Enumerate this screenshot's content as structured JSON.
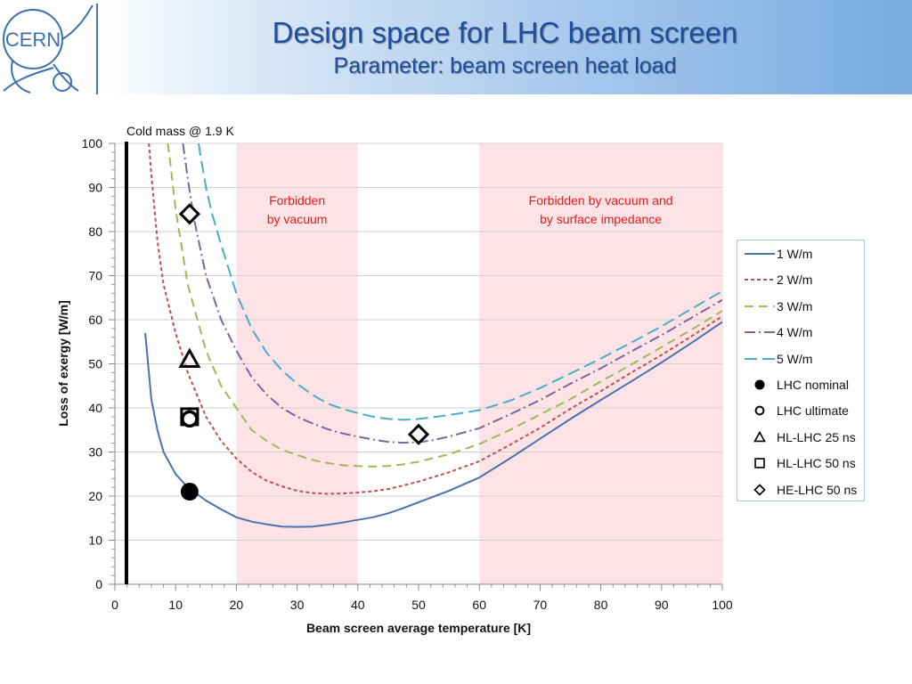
{
  "header": {
    "logo_text": "CERN",
    "title": "Design space for LHC beam screen",
    "subtitle": "Parameter: beam screen heat load"
  },
  "chart_data": {
    "type": "line",
    "xlabel": "Beam screen average temperature [K]",
    "ylabel": "Loss of exergy [W/m]",
    "xlim": [
      0,
      100
    ],
    "ylim": [
      0,
      100
    ],
    "xticks": [
      0,
      10,
      20,
      30,
      40,
      50,
      60,
      70,
      80,
      90,
      100
    ],
    "yticks": [
      0,
      10,
      20,
      30,
      40,
      50,
      60,
      70,
      80,
      90,
      100
    ],
    "grid": "horizontal",
    "legend_position": "right",
    "cold_mass": {
      "x": 1.9,
      "label": "Cold mass @ 1.9 K"
    },
    "forbidden_regions": [
      {
        "x0": 20,
        "x1": 40,
        "label": [
          "Forbidden",
          "by vacuum"
        ]
      },
      {
        "x0": 60,
        "x1": 100,
        "label": [
          "Forbidden by vacuum and",
          "by surface impedance"
        ]
      }
    ],
    "series": [
      {
        "name": "1 W/m",
        "color": "#4a72b0",
        "dash": "",
        "points": [
          [
            5,
            57
          ],
          [
            6,
            42
          ],
          [
            7,
            35
          ],
          [
            8,
            30
          ],
          [
            10,
            25
          ],
          [
            12,
            22
          ],
          [
            15,
            19
          ],
          [
            17.5,
            17
          ],
          [
            20,
            15.2
          ],
          [
            22.5,
            14.2
          ],
          [
            25,
            13.6
          ],
          [
            27.5,
            13.1
          ],
          [
            30,
            13
          ],
          [
            32.5,
            13.1
          ],
          [
            35,
            13.5
          ],
          [
            37.5,
            14
          ],
          [
            40,
            14.6
          ],
          [
            42.5,
            15.2
          ],
          [
            45,
            16.1
          ],
          [
            47.5,
            17.3
          ],
          [
            50,
            18.6
          ],
          [
            55,
            21.2
          ],
          [
            60,
            24.2
          ],
          [
            65,
            28.5
          ],
          [
            70,
            33
          ],
          [
            75,
            37.5
          ],
          [
            80,
            41.8
          ],
          [
            85,
            46
          ],
          [
            90,
            50.3
          ],
          [
            95,
            54.8
          ],
          [
            100,
            59.5
          ]
        ]
      },
      {
        "name": "2 W/m",
        "color": "#c0504d",
        "dash": "4,3",
        "points": [
          [
            5.6,
            100
          ],
          [
            6,
            93
          ],
          [
            7,
            78
          ],
          [
            8,
            68
          ],
          [
            10,
            57
          ],
          [
            12,
            48
          ],
          [
            15,
            38
          ],
          [
            17.5,
            32.5
          ],
          [
            20,
            28.5
          ],
          [
            22.5,
            25.5
          ],
          [
            25,
            23.5
          ],
          [
            27.5,
            22.2
          ],
          [
            30,
            21.2
          ],
          [
            32.5,
            20.7
          ],
          [
            35,
            20.5
          ],
          [
            37.5,
            20.6
          ],
          [
            40,
            20.8
          ],
          [
            42.5,
            21.1
          ],
          [
            45,
            21.6
          ],
          [
            47.5,
            22.4
          ],
          [
            50,
            23.3
          ],
          [
            55,
            25.4
          ],
          [
            60,
            27.9
          ],
          [
            65,
            31.6
          ],
          [
            70,
            35.5
          ],
          [
            75,
            39.8
          ],
          [
            80,
            43.8
          ],
          [
            85,
            48
          ],
          [
            90,
            52
          ],
          [
            95,
            56.3
          ],
          [
            100,
            60.8
          ]
        ]
      },
      {
        "name": "3 W/m",
        "color": "#9bbb59",
        "dash": "10,6",
        "points": [
          [
            8.7,
            100
          ],
          [
            9,
            97
          ],
          [
            10,
            85
          ],
          [
            12,
            68
          ],
          [
            15,
            53
          ],
          [
            17.5,
            45
          ],
          [
            20,
            40
          ],
          [
            22.5,
            35
          ],
          [
            25,
            32.5
          ],
          [
            27.5,
            30.5
          ],
          [
            30,
            29.3
          ],
          [
            32.5,
            28.2
          ],
          [
            35,
            27.5
          ],
          [
            37.5,
            27
          ],
          [
            40,
            26.8
          ],
          [
            42.5,
            26.7
          ],
          [
            45,
            26.8
          ],
          [
            47.5,
            27.2
          ],
          [
            50,
            27.8
          ],
          [
            55,
            29.5
          ],
          [
            60,
            31.8
          ],
          [
            65,
            35
          ],
          [
            70,
            38.5
          ],
          [
            75,
            42
          ],
          [
            80,
            46
          ],
          [
            85,
            49.8
          ],
          [
            90,
            53.8
          ],
          [
            95,
            57.8
          ],
          [
            100,
            62
          ]
        ]
      },
      {
        "name": "4 W/m",
        "color": "#8064a2",
        "dash": "12,4,2,4",
        "points": [
          [
            11.2,
            100
          ],
          [
            12,
            92
          ],
          [
            13,
            83
          ],
          [
            15,
            70
          ],
          [
            17.5,
            60
          ],
          [
            20,
            53
          ],
          [
            22.5,
            47
          ],
          [
            25,
            43
          ],
          [
            27.5,
            40
          ],
          [
            30,
            38
          ],
          [
            32.5,
            36.5
          ],
          [
            35,
            35.2
          ],
          [
            37.5,
            34.2
          ],
          [
            40,
            33.5
          ],
          [
            42.5,
            32.8
          ],
          [
            45,
            32.3
          ],
          [
            47.5,
            32.1
          ],
          [
            50,
            32.2
          ],
          [
            52.5,
            32.7
          ],
          [
            55,
            33.5
          ],
          [
            60,
            35.4
          ],
          [
            65,
            38.5
          ],
          [
            70,
            41.8
          ],
          [
            75,
            45.5
          ],
          [
            80,
            49
          ],
          [
            85,
            52.8
          ],
          [
            90,
            56.5
          ],
          [
            95,
            60.5
          ],
          [
            100,
            64.5
          ]
        ]
      },
      {
        "name": "5 W/m",
        "color": "#4bacc6",
        "dash": "14,6",
        "points": [
          [
            13.8,
            100
          ],
          [
            14,
            98
          ],
          [
            15,
            90
          ],
          [
            16,
            84
          ],
          [
            17.5,
            77
          ],
          [
            20,
            66
          ],
          [
            22.5,
            58
          ],
          [
            25,
            52.5
          ],
          [
            27.5,
            48.5
          ],
          [
            30,
            45.5
          ],
          [
            32.5,
            43
          ],
          [
            35,
            41
          ],
          [
            37.5,
            39.8
          ],
          [
            40,
            38.8
          ],
          [
            42.5,
            38
          ],
          [
            45,
            37.5
          ],
          [
            47.5,
            37.3
          ],
          [
            50,
            37.5
          ],
          [
            52.5,
            37.9
          ],
          [
            55,
            38.4
          ],
          [
            57.5,
            38.9
          ],
          [
            60,
            39.5
          ],
          [
            65,
            41.6
          ],
          [
            70,
            44.5
          ],
          [
            75,
            47.8
          ],
          [
            80,
            51.2
          ],
          [
            85,
            54.8
          ],
          [
            90,
            58.5
          ],
          [
            95,
            62.5
          ],
          [
            100,
            66.5
          ]
        ]
      }
    ],
    "markers": [
      {
        "name": "LHC nominal",
        "shape": "filled-circle",
        "x": 12.3,
        "y": 21
      },
      {
        "name": "LHC ultimate",
        "shape": "open-circle",
        "x": 12.3,
        "y": 37.5
      },
      {
        "name": "HL-LHC 25 ns",
        "shape": "triangle",
        "x": 12.3,
        "y": 51
      },
      {
        "name": "HL-LHC 50 ns",
        "shape": "square",
        "x": 12.3,
        "y": 38
      },
      {
        "name": "HE-LHC 50 ns",
        "shape": "diamond",
        "points": [
          [
            12.3,
            84
          ],
          [
            50,
            34
          ]
        ]
      }
    ]
  }
}
